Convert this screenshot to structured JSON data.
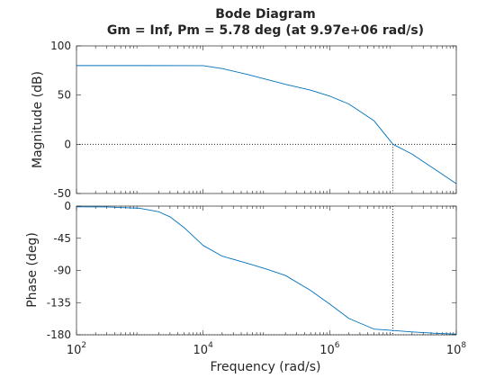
{
  "chart_data": {
    "type": "line",
    "title": "Bode Diagram",
    "subtitle": "Gm = Inf,  Pm = 5.78 deg (at 9.97e+06 rad/s)",
    "xlabel": "Frequency  (rad/s)",
    "x_scale": "log",
    "xlim": [
      100,
      100000000
    ],
    "x_ticks": [
      {
        "value": 100,
        "base": "10",
        "exp": "2"
      },
      {
        "value": 10000,
        "base": "10",
        "exp": "4"
      },
      {
        "value": 1000000,
        "base": "10",
        "exp": "6"
      },
      {
        "value": 100000000,
        "base": "10",
        "exp": "8"
      }
    ],
    "crossover_frequency": 9970000,
    "line_color": "#0072BD",
    "grid": false,
    "panels": [
      {
        "name": "magnitude",
        "ylabel": "Magnitude (dB)",
        "ylim": [
          -50,
          100
        ],
        "y_ticks": [
          100,
          50,
          0,
          -50
        ],
        "y_tick_labels": [
          "100",
          "50",
          "0",
          "-50"
        ],
        "reference_line": 0,
        "points": [
          [
            100,
            80
          ],
          [
            1000,
            80
          ],
          [
            10000,
            79.9
          ],
          [
            20000,
            77
          ],
          [
            50000,
            71
          ],
          [
            100000,
            66
          ],
          [
            200000,
            61
          ],
          [
            500000,
            55
          ],
          [
            1000000,
            49
          ],
          [
            2000000,
            41
          ],
          [
            5000000,
            24
          ],
          [
            10000000,
            0
          ],
          [
            20000000,
            -10
          ],
          [
            50000000,
            -27
          ],
          [
            100000000,
            -40
          ]
        ]
      },
      {
        "name": "phase",
        "ylabel": "Phase (deg)",
        "ylim": [
          -180,
          0
        ],
        "y_ticks": [
          0,
          -45,
          -90,
          -135,
          -180
        ],
        "y_tick_labels": [
          "0",
          "-45",
          "-90",
          "-135",
          "-180"
        ],
        "reference_line": -180,
        "points": [
          [
            100,
            -1
          ],
          [
            300,
            -1.2
          ],
          [
            1000,
            -3
          ],
          [
            2000,
            -8
          ],
          [
            3000,
            -15
          ],
          [
            5000,
            -30
          ],
          [
            10000,
            -55
          ],
          [
            20000,
            -70
          ],
          [
            50000,
            -80
          ],
          [
            100000,
            -88
          ],
          [
            200000,
            -97
          ],
          [
            500000,
            -118
          ],
          [
            1000000,
            -137
          ],
          [
            2000000,
            -157
          ],
          [
            5000000,
            -172
          ],
          [
            10000000,
            -174
          ],
          [
            20000000,
            -176
          ],
          [
            50000000,
            -178
          ],
          [
            100000000,
            -179
          ]
        ]
      }
    ]
  }
}
